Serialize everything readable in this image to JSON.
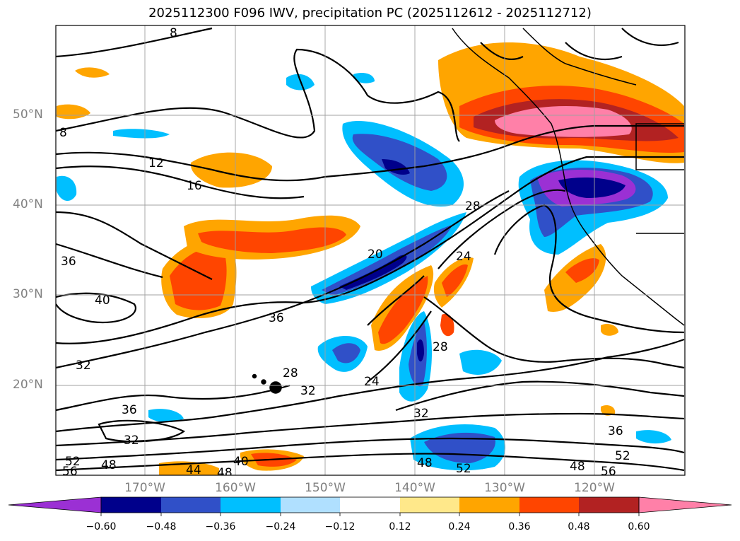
{
  "title": "2025112300 F096 IWV, precipitation PC (2025112612 - 2025112712)",
  "lat_labels": [
    "50°N",
    "40°N",
    "30°N",
    "20°N"
  ],
  "lon_labels": [
    "170°W",
    "160°W",
    "150°W",
    "140°W",
    "130°W",
    "120°W"
  ],
  "colorbar": {
    "ticks": [
      "−0.60",
      "−0.48",
      "−0.36",
      "−0.24",
      "−0.12",
      "0.12",
      "0.24",
      "0.36",
      "0.48",
      "0.60"
    ],
    "colors": [
      "#9b30d4",
      "#00008b",
      "#3050c8",
      "#00bfff",
      "#b0e0ff",
      "#ffffff",
      "#ffe88a",
      "#ffa500",
      "#ff4500",
      "#b22222",
      "#ff80a8"
    ]
  },
  "contour_labels": [
    "8",
    "8",
    "12",
    "16",
    "36",
    "40",
    "36",
    "32",
    "36",
    "32",
    "20",
    "28",
    "24",
    "28",
    "24",
    "28",
    "32",
    "32",
    "36",
    "52",
    "48",
    "56",
    "52",
    "48",
    "44",
    "48",
    "40",
    "48",
    "52",
    "56"
  ]
}
